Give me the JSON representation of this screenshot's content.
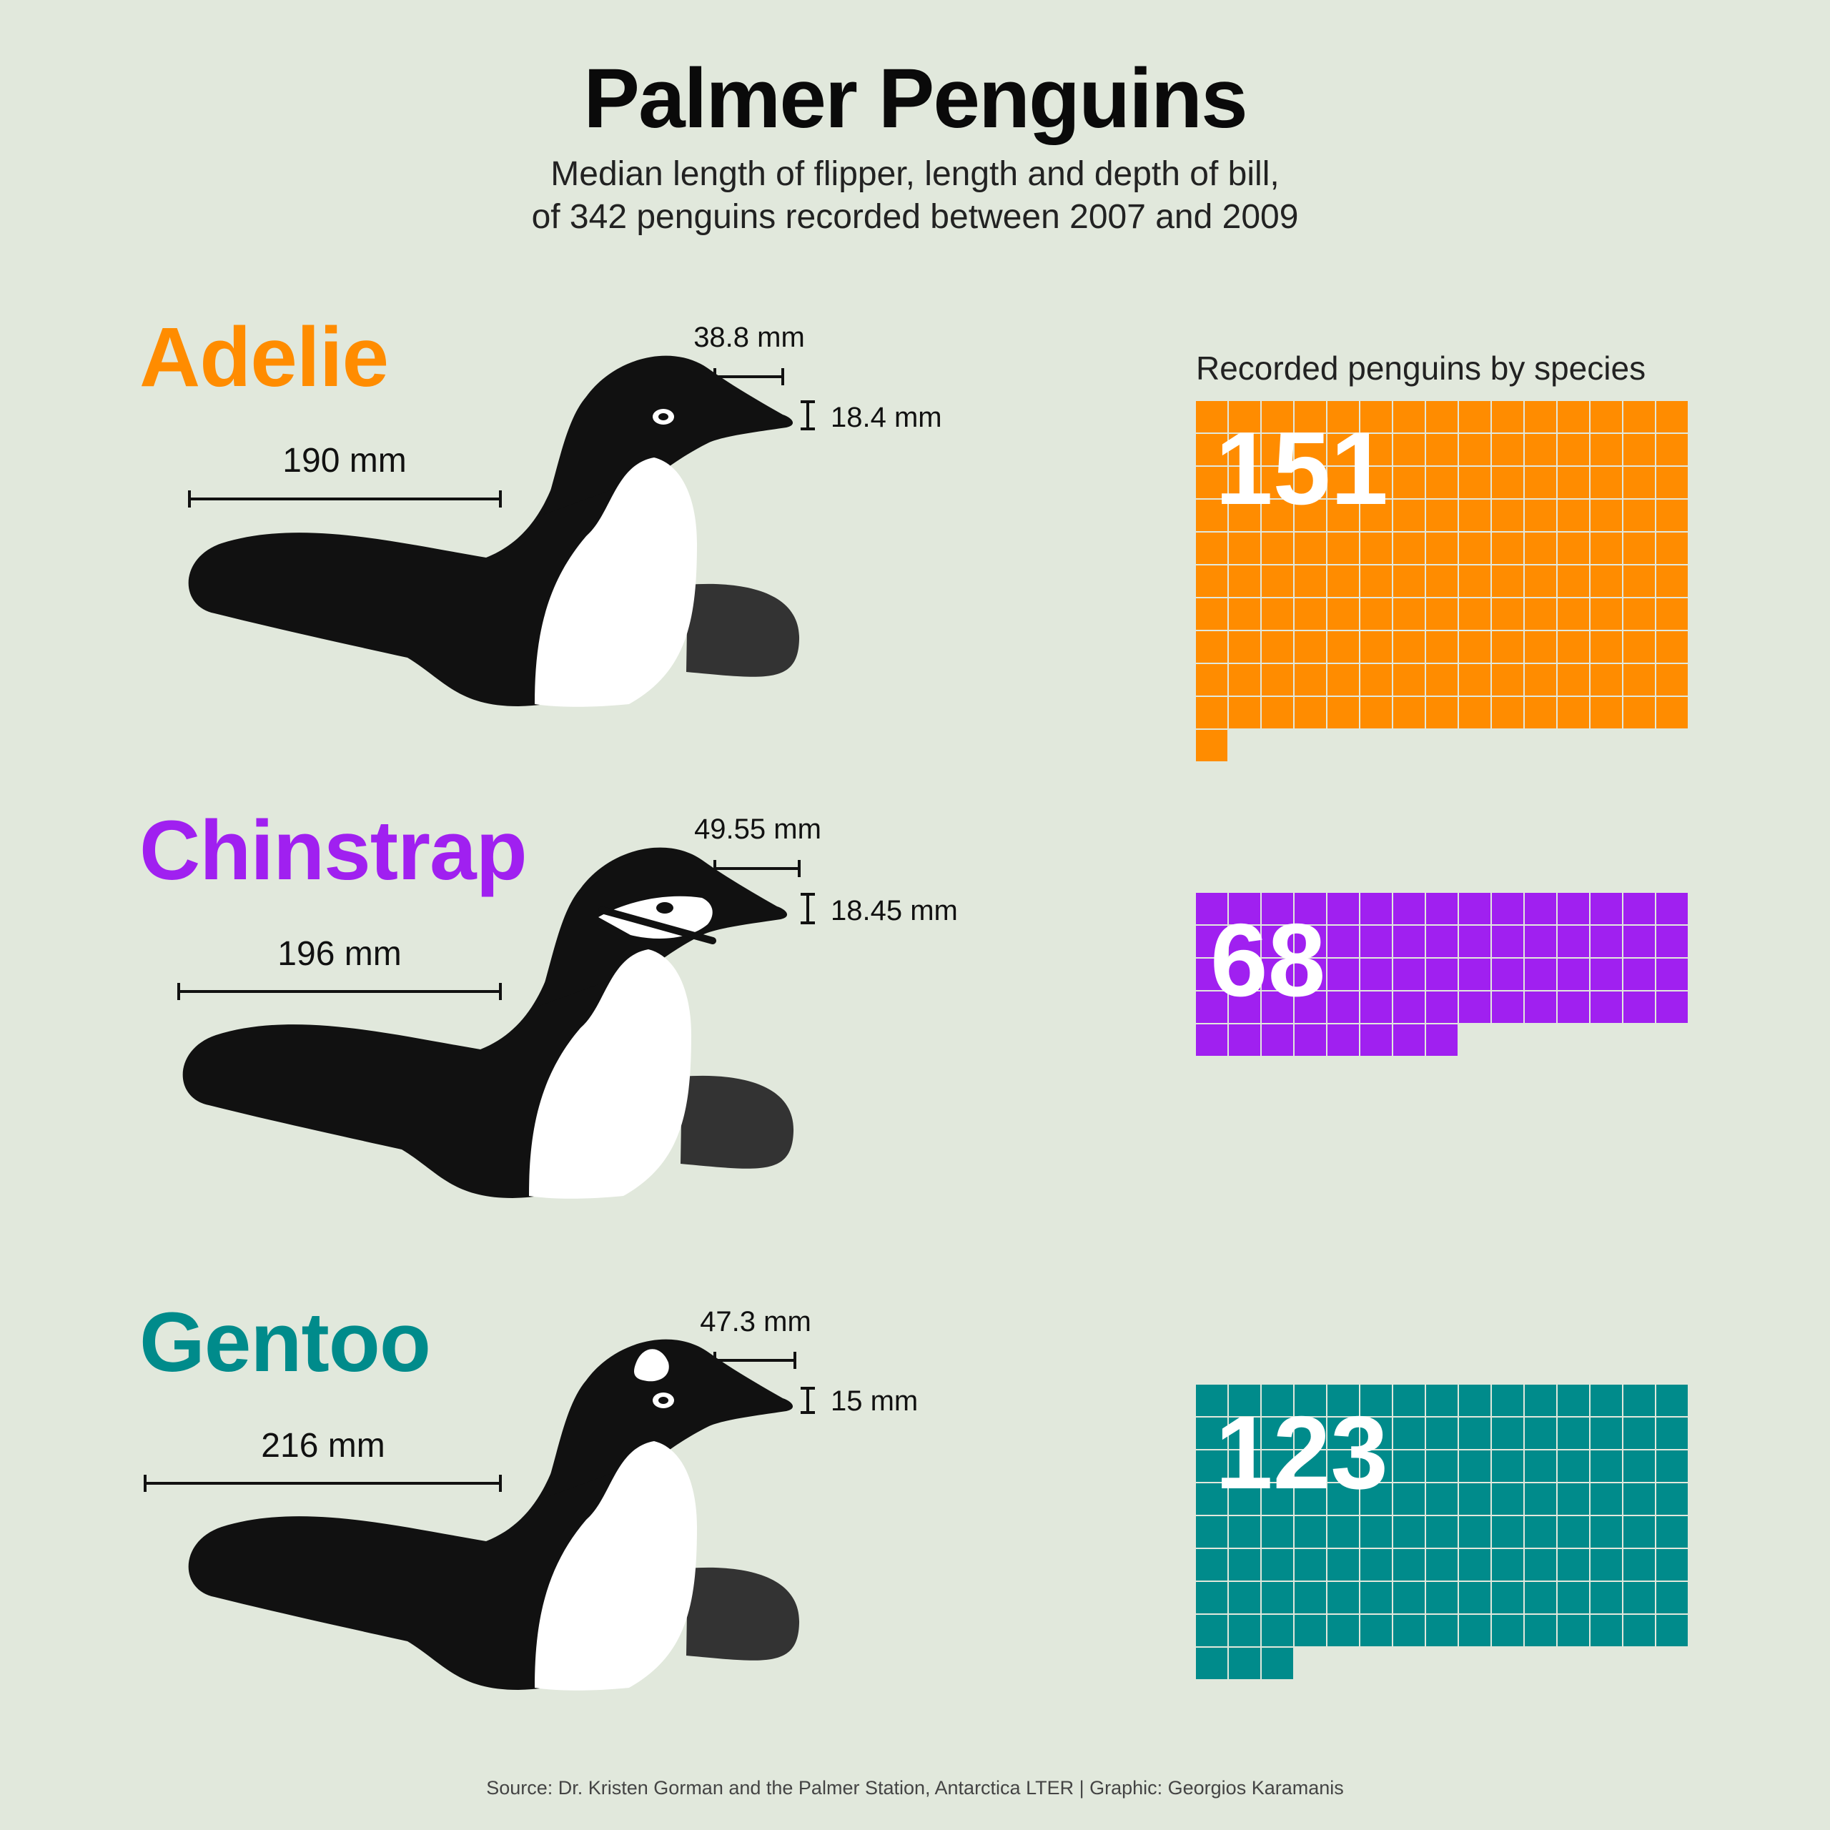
{
  "title": "Palmer Penguins",
  "subtitle_line1": "Median length of flipper, length and depth of bill,",
  "subtitle_line2": "of 342 penguins recorded between 2007 and 2009",
  "waffle_title": "Recorded penguins by species",
  "source": "Source: Dr. Kristen Gorman and the Palmer Station, Antarctica LTER | Graphic: Georgios Karamanis",
  "colors": {
    "background": "#e1e8dc",
    "adelie": "#ff8c00",
    "chinstrap": "#a020f0",
    "gentoo": "#008b8b",
    "penguin_body": "#111111",
    "penguin_flipper": "#333333"
  },
  "icons": [
    "penguin-illustration-icon"
  ],
  "chart_data": {
    "type": "waffle",
    "waffle_columns": 15,
    "species": [
      {
        "name": "Adelie",
        "count": 151,
        "count_label": "151",
        "flipper_length": "190 mm",
        "bill_length": "38.8 mm",
        "bill_depth": "18.4 mm",
        "color": "#ff8c00"
      },
      {
        "name": "Chinstrap",
        "count": 68,
        "count_label": "68",
        "flipper_length": "196 mm",
        "bill_length": "49.55 mm",
        "bill_depth": "18.45 mm",
        "color": "#a020f0"
      },
      {
        "name": "Gentoo",
        "count": 123,
        "count_label": "123",
        "flipper_length": "216 mm",
        "bill_length": "47.3 mm",
        "bill_depth": "15 mm",
        "color": "#008b8b"
      }
    ]
  }
}
